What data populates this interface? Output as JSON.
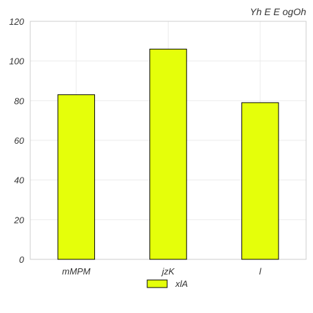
{
  "chart_data": {
    "type": "bar",
    "title": "Yh E  E  ogOh",
    "categories": [
      "mMPM",
      "jzK",
      "l"
    ],
    "series": [
      {
        "name": "xlA",
        "values": [
          83,
          106,
          79
        ],
        "color": "#e5ff0a"
      }
    ],
    "ylim": [
      0,
      120
    ],
    "yticks": [
      0,
      20,
      40,
      60,
      80,
      100,
      120
    ],
    "xlabel": "",
    "ylabel": "",
    "grid": true,
    "legend_position": "bottom-center",
    "colors": {
      "bar_fill": "#e5ff0a",
      "bar_stroke": "#000000",
      "grid": "#ebebeb",
      "frame": "#cccccc",
      "text": "#333333"
    }
  }
}
